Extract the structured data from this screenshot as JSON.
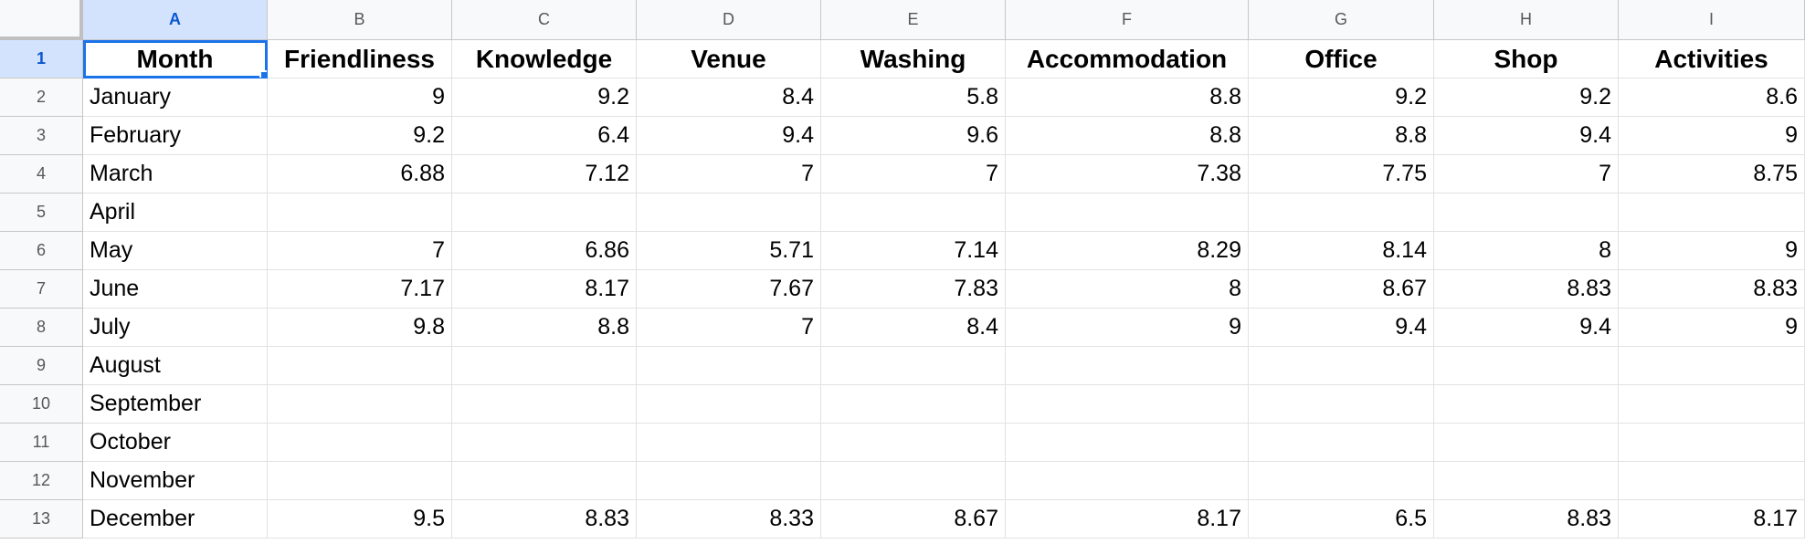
{
  "columns": [
    "A",
    "B",
    "C",
    "D",
    "E",
    "F",
    "G",
    "H",
    "I"
  ],
  "row_numbers": [
    "1",
    "2",
    "3",
    "4",
    "5",
    "6",
    "7",
    "8",
    "9",
    "10",
    "11",
    "12",
    "13"
  ],
  "selected_cell": "A1",
  "rows": [
    [
      "Month",
      "Friendliness",
      "Knowledge",
      "Venue",
      "Washing",
      "Accommodation",
      "Office",
      "Shop",
      "Activities"
    ],
    [
      "January",
      "9",
      "9.2",
      "8.4",
      "5.8",
      "8.8",
      "9.2",
      "9.2",
      "8.6"
    ],
    [
      "February",
      "9.2",
      "6.4",
      "9.4",
      "9.6",
      "8.8",
      "8.8",
      "9.4",
      "9"
    ],
    [
      "March",
      "6.88",
      "7.12",
      "7",
      "7",
      "7.38",
      "7.75",
      "7",
      "8.75"
    ],
    [
      "April",
      "",
      "",
      "",
      "",
      "",
      "",
      "",
      ""
    ],
    [
      "May",
      "7",
      "6.86",
      "5.71",
      "7.14",
      "8.29",
      "8.14",
      "8",
      "9"
    ],
    [
      "June",
      "7.17",
      "8.17",
      "7.67",
      "7.83",
      "8",
      "8.67",
      "8.83",
      "8.83"
    ],
    [
      "July",
      "9.8",
      "8.8",
      "7",
      "8.4",
      "9",
      "9.4",
      "9.4",
      "9"
    ],
    [
      "August",
      "",
      "",
      "",
      "",
      "",
      "",
      "",
      ""
    ],
    [
      "September",
      "",
      "",
      "",
      "",
      "",
      "",
      "",
      ""
    ],
    [
      "October",
      "",
      "",
      "",
      "",
      "",
      "",
      "",
      ""
    ],
    [
      "November",
      "",
      "",
      "",
      "",
      "",
      "",
      "",
      ""
    ],
    [
      "December",
      "9.5",
      "8.83",
      "8.33",
      "8.67",
      "8.17",
      "6.5",
      "8.83",
      "8.17"
    ]
  ],
  "colors": {
    "selection_accent": "#1a73e8",
    "header_background": "#f8f9fa",
    "selected_header_background": "#d3e3fd",
    "gridline": "#e2e2e3"
  }
}
